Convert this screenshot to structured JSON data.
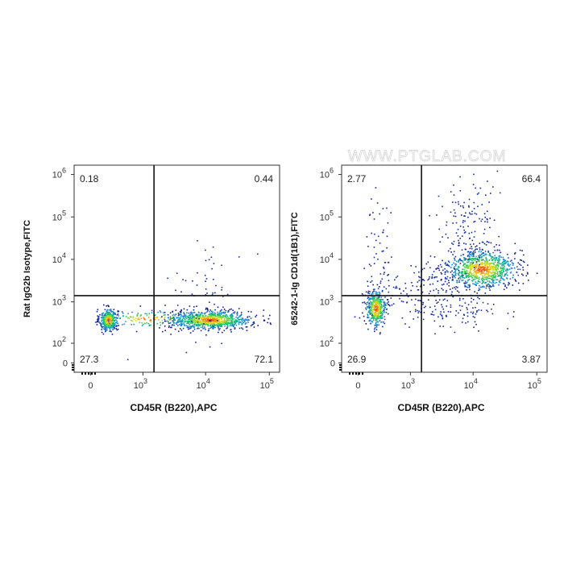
{
  "watermark": "WWW.PTGLAB.COM",
  "chart_data": [
    {
      "type": "scatter",
      "title": "",
      "xlabel": "CD45R (B220),APC",
      "ylabel": "Rat IgG2b Isotype,FITC",
      "x_ticks": [
        {
          "base": "0",
          "exp": "",
          "value": 0
        },
        {
          "base": "10",
          "exp": "3",
          "value": 1000
        },
        {
          "base": "10",
          "exp": "4",
          "value": 10000
        },
        {
          "base": "10",
          "exp": "5",
          "value": 100000
        }
      ],
      "y_ticks": [
        {
          "base": "0",
          "exp": "",
          "value": 0
        },
        {
          "base": "10",
          "exp": "2",
          "value": 100
        },
        {
          "base": "10",
          "exp": "3",
          "value": 1000
        },
        {
          "base": "10",
          "exp": "4",
          "value": 10000
        },
        {
          "base": "10",
          "exp": "5",
          "value": 100000
        },
        {
          "base": "10",
          "exp": "6",
          "value": 1000000
        }
      ],
      "x_scale": "biexponential",
      "y_scale": "biexponential",
      "gate": {
        "x": 1500,
        "y": 1400
      },
      "quadrants": {
        "upper_left": "0.18",
        "upper_right": "0.44",
        "lower_left": "27.3",
        "lower_right": "72.1"
      },
      "populations": [
        {
          "center_x": 250,
          "center_y": 350,
          "share": 0.273
        },
        {
          "center_x": 8000,
          "center_y": 350,
          "share": 0.721
        }
      ]
    },
    {
      "type": "scatter",
      "title": "",
      "xlabel": "CD45R (B220),APC",
      "ylabel": "65242-1-Ig CD1d(1B1),FITC",
      "x_ticks": [
        {
          "base": "0",
          "exp": "",
          "value": 0
        },
        {
          "base": "10",
          "exp": "3",
          "value": 1000
        },
        {
          "base": "10",
          "exp": "4",
          "value": 10000
        },
        {
          "base": "10",
          "exp": "5",
          "value": 100000
        }
      ],
      "y_ticks": [
        {
          "base": "0",
          "exp": "",
          "value": 0
        },
        {
          "base": "10",
          "exp": "2",
          "value": 100
        },
        {
          "base": "10",
          "exp": "3",
          "value": 1000
        },
        {
          "base": "10",
          "exp": "4",
          "value": 10000
        },
        {
          "base": "10",
          "exp": "5",
          "value": 100000
        },
        {
          "base": "10",
          "exp": "6",
          "value": 1000000
        }
      ],
      "x_scale": "biexponential",
      "y_scale": "biexponential",
      "gate": {
        "x": 1500,
        "y": 1400
      },
      "quadrants": {
        "upper_left": "2.77",
        "upper_right": "66.4",
        "lower_left": "26.9",
        "lower_right": "3.87"
      },
      "populations": [
        {
          "center_x": 250,
          "center_y": 600,
          "share": 0.269
        },
        {
          "center_x": 12000,
          "center_y": 4000,
          "share": 0.664
        }
      ]
    }
  ]
}
